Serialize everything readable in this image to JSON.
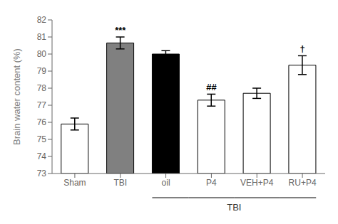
{
  "chart_data": {
    "type": "bar",
    "categories": [
      "Sham",
      "TBI",
      "oil",
      "P4",
      "VEH+P4",
      "RU+P4"
    ],
    "values": [
      75.9,
      80.65,
      80.0,
      77.3,
      77.7,
      79.35
    ],
    "errors": [
      0.35,
      0.35,
      0.2,
      0.35,
      0.3,
      0.55
    ],
    "colors": [
      "white",
      "#808080",
      "black",
      "white",
      "white",
      "white"
    ],
    "ylabel": "Brain water content (%)",
    "ylim": [
      73,
      82
    ],
    "yticks": [
      73,
      74,
      75,
      76,
      77,
      78,
      79,
      80,
      81,
      82
    ],
    "grid": false,
    "annotations": [
      {
        "category": "TBI",
        "text": "***"
      },
      {
        "category": "P4",
        "text": "##"
      },
      {
        "category": "RU+P4",
        "text": "†"
      },
      {
        "text": "TBI",
        "span": [
          "oil",
          "RU+P4"
        ]
      }
    ]
  }
}
